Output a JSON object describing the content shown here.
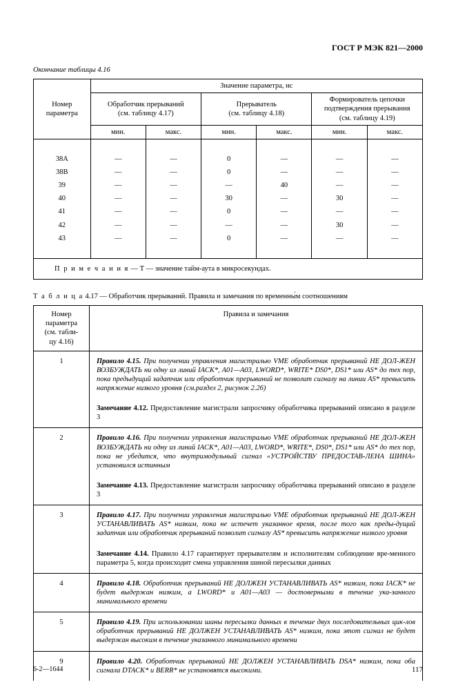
{
  "doc_header": "ГОСТ Р МЭК 821—2000",
  "table416": {
    "continuation": "Окончание таблицы 4.16",
    "col_param": "Номер\nпараметра",
    "super_header": "Значение параметра, нс",
    "group1": {
      "label": "Обработчик прерываний",
      "sub": "(см. таблицу 4.17)"
    },
    "group2": {
      "label": "Прерыватель",
      "sub": "(см. таблицу 4.18)"
    },
    "group3": {
      "label": "Формирователь цепочки\nподтверждения прерывания",
      "sub": "(см. таблицу 4.19)"
    },
    "min": "мин.",
    "max": "макс.",
    "rows": [
      {
        "n": "38А",
        "v": [
          "—",
          "—",
          "0",
          "—",
          "—",
          "—"
        ]
      },
      {
        "n": "38В",
        "v": [
          "—",
          "—",
          "0",
          "—",
          "—",
          "—"
        ]
      },
      {
        "n": "39",
        "v": [
          "—",
          "—",
          "—",
          "40",
          "—",
          "—"
        ]
      },
      {
        "n": "40",
        "v": [
          "—",
          "—",
          "30",
          "—",
          "30",
          "—"
        ]
      },
      {
        "n": "41",
        "v": [
          "—",
          "—",
          "0",
          "—",
          "—",
          "—"
        ]
      },
      {
        "n": "42",
        "v": [
          "—",
          "—",
          "—",
          "—",
          "30",
          "—"
        ]
      },
      {
        "n": "43",
        "v": [
          "—",
          "—",
          "0",
          "—",
          "—",
          "—"
        ]
      }
    ],
    "note_label": "П р и м е ч а н и я",
    "note_text": " — Т — значение тайм-аута в микросекундах."
  },
  "table417": {
    "caption_label": "Т а б л и ц а",
    "caption_rest": "  4.17 — Обработчик прерываний. Правила и замечания по временны́м соотношениям",
    "col_param": "Номер\nпараметра\n(см. табли-\nцу 4.16)",
    "col_rules": "Правила и замечания",
    "items": [
      {
        "num": "1",
        "rule_title": "Правило 4.15.",
        "rule": " При получении управления магистралью VME обработчик  прерываний  НЕ ДОЛ-ЖЕН ВОЗБУЖДАТЬ ни одну из линий IACK*, A01—A03, LWORD*, WRITE* DS0*, DS1* или AS* до тех пор,  пока предыдущий задатчик или обработчик прерываний не позволит сигналу на линии AS* превысить напряжение низкого уровня (см.раздел 2, рисунок 2.26)",
        "note_title": "Замечание 4.12.",
        "note": " Предоставление магистрали запросчику обработчика прерываний описано в разделе 3"
      },
      {
        "num": "2",
        "rule_title": "Правило 4.16.",
        "rule": " При получении управления магистралью VME обработчик прерываний НЕ ДОЛ-ЖЕН ВОЗБУЖДАТЬ ни одну из линий IACK*, A01—A03, LWORD*, WRITE*, DS0*, DS1* или AS* до тех пор, пока не убедится, что внутримодульный сигнал «УСТРОЙСТВУ ПРЕДОСТАВ-ЛЕНА ШИНА» установился истинным",
        "note_title": "Замечание 4.13.",
        "note": " Предоставление магистрали запросчику обработчика прерываний описано в разделе 3"
      },
      {
        "num": "3",
        "rule_title": "Правило 4.17.",
        "rule": " При получении управления магистралью VME обработчик  прерываний НЕ ДОЛ-ЖЕН УСТАНАВЛИВАТЬ AS* низким, пока не истечет указанное время, после того как преды-дущий задатчик или обработчик прерываний позволит сигналу AS* превысить напряжение низкого уровня",
        "note_title": "Замечание 4.14.",
        "note": " Правило 4.17 гарантирует  прерывателям и исполнителям соблюдение вре-менного параметра 5, когда происходит смена управления шиной пересылки данных"
      },
      {
        "num": "4",
        "rule_title": "Правило 4.18.",
        "rule": " Обработчик прерываний НЕ ДОЛЖЕН УСТАНАВЛИВАТЬ   AS* низким,  пока IACK* не будет выдержан низким, а LWORD* и A01—A03 — достоверными в течение ука-занного минимального времени"
      },
      {
        "num": "5",
        "rule_title": "Правило 4.19.",
        "rule": " При использовании шины пересылки данных в течение двух последовательных цик-лов обработчик прерываний  НЕ  ДОЛЖЕН УСТАНАВЛИВАТЬ  AS* низким, пока этот сигнал не будет выдержан высоким в течение указанного минимального времени"
      },
      {
        "num": "9",
        "rule_title": "Правило 4.20.",
        "rule": " Обработчик  прерываний  НЕ ДОЛЖЕН УСТАНАВЛИВАТЬ  DSA*  низким,  пока оба сигнала DTACK* и BERR* не установятся высокими."
      }
    ]
  },
  "footer_sig": "6-2—1644",
  "page_number": "117"
}
